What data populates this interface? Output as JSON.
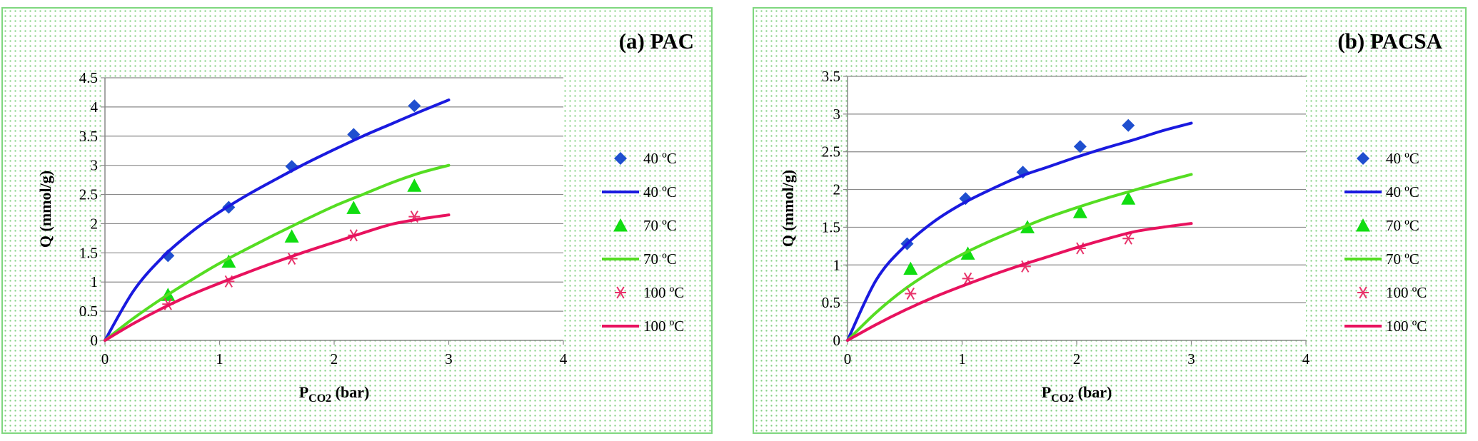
{
  "chart_data": [
    {
      "type": "scatter",
      "title": "(a) PAC",
      "xlabel": "P",
      "xlabel_sub": "CO2",
      "xlabel_unit": " (bar)",
      "ylabel": "Q (mmol/g)",
      "xlim": [
        0,
        4
      ],
      "ylim": [
        0,
        4.5
      ],
      "xticks": [
        "0",
        "1",
        "2",
        "3",
        "4"
      ],
      "yticks": [
        "0",
        "0.5",
        "1",
        "1.5",
        "2",
        "2.5",
        "3",
        "3.5",
        "4",
        "4.5"
      ],
      "grid": "horizontal",
      "legend_position": "right",
      "series": [
        {
          "name": "40 ºC",
          "kind": "markers",
          "marker": "diamond",
          "color": "#1f4fcf",
          "x": [
            0.55,
            1.08,
            1.63,
            2.17,
            2.7
          ],
          "y": [
            1.45,
            2.28,
            2.98,
            3.53,
            4.02
          ]
        },
        {
          "name": "40 ºC",
          "kind": "line",
          "color": "#1a1adf",
          "x": [
            0,
            0.25,
            0.5,
            0.75,
            1,
            1.25,
            1.5,
            1.75,
            2,
            2.25,
            2.5,
            2.75,
            3
          ],
          "y": [
            0,
            0.85,
            1.42,
            1.85,
            2.2,
            2.5,
            2.77,
            3.03,
            3.27,
            3.5,
            3.71,
            3.92,
            4.12
          ]
        },
        {
          "name": "70 ºC",
          "kind": "markers",
          "marker": "triangle",
          "color": "#11dd11",
          "x": [
            0.55,
            1.08,
            1.63,
            2.17,
            2.7
          ],
          "y": [
            0.78,
            1.35,
            1.78,
            2.27,
            2.65
          ]
        },
        {
          "name": "70 ºC",
          "kind": "line",
          "color": "#55dd22",
          "x": [
            0,
            0.25,
            0.5,
            0.75,
            1,
            1.25,
            1.5,
            1.75,
            2,
            2.25,
            2.5,
            2.75,
            3
          ],
          "y": [
            0,
            0.38,
            0.72,
            1.03,
            1.32,
            1.58,
            1.83,
            2.07,
            2.3,
            2.5,
            2.7,
            2.87,
            3.0
          ]
        },
        {
          "name": "100 ºC",
          "kind": "markers",
          "marker": "asterisk",
          "color": "#e8336b",
          "x": [
            0.55,
            1.08,
            1.63,
            2.17,
            2.7
          ],
          "y": [
            0.62,
            1.01,
            1.4,
            1.8,
            2.12
          ]
        },
        {
          "name": "100 ºC",
          "kind": "line",
          "color": "#e8125e",
          "x": [
            0,
            0.25,
            0.5,
            0.75,
            1,
            1.25,
            1.5,
            1.75,
            2,
            2.25,
            2.5,
            2.75,
            3
          ],
          "y": [
            0,
            0.29,
            0.55,
            0.78,
            0.98,
            1.17,
            1.35,
            1.52,
            1.68,
            1.84,
            1.99,
            2.08,
            2.15
          ]
        }
      ]
    },
    {
      "type": "scatter",
      "title": "(b) PACSA",
      "xlabel": "P",
      "xlabel_sub": "CO2",
      "xlabel_unit": " (bar)",
      "ylabel": "Q (mmol/g)",
      "xlim": [
        0,
        4
      ],
      "ylim": [
        0,
        3.5
      ],
      "xticks": [
        "0",
        "1",
        "2",
        "3",
        "4"
      ],
      "yticks": [
        "0",
        "0.5",
        "1",
        "1.5",
        "2",
        "2.5",
        "3",
        "3.5"
      ],
      "grid": "horizontal",
      "legend_position": "right",
      "series": [
        {
          "name": "40 ºC",
          "kind": "markers",
          "marker": "diamond",
          "color": "#1f4fcf",
          "x": [
            0.52,
            1.03,
            1.53,
            2.03,
            2.45
          ],
          "y": [
            1.28,
            1.88,
            2.23,
            2.57,
            2.85
          ]
        },
        {
          "name": "40 ºC",
          "kind": "line",
          "color": "#1a1adf",
          "x": [
            0,
            0.25,
            0.5,
            0.75,
            1,
            1.25,
            1.5,
            1.75,
            2,
            2.25,
            2.5,
            2.75,
            3
          ],
          "y": [
            0,
            0.8,
            1.25,
            1.57,
            1.81,
            2.0,
            2.17,
            2.3,
            2.43,
            2.55,
            2.66,
            2.78,
            2.88
          ]
        },
        {
          "name": "70 ºC",
          "kind": "markers",
          "marker": "triangle",
          "color": "#11dd11",
          "x": [
            0.55,
            1.05,
            1.57,
            2.03,
            2.45
          ],
          "y": [
            0.95,
            1.15,
            1.5,
            1.7,
            1.88
          ]
        },
        {
          "name": "70 ºC",
          "kind": "line",
          "color": "#55dd22",
          "x": [
            0,
            0.25,
            0.5,
            0.75,
            1,
            1.25,
            1.5,
            1.75,
            2,
            2.25,
            2.5,
            2.75,
            3
          ],
          "y": [
            0,
            0.37,
            0.68,
            0.93,
            1.14,
            1.32,
            1.48,
            1.63,
            1.76,
            1.88,
            1.99,
            2.1,
            2.2
          ]
        },
        {
          "name": "100 ºC",
          "kind": "markers",
          "marker": "asterisk",
          "color": "#e8336b",
          "x": [
            0.55,
            1.05,
            1.55,
            2.03,
            2.45
          ],
          "y": [
            0.62,
            0.82,
            0.98,
            1.22,
            1.35
          ]
        },
        {
          "name": "100 ºC",
          "kind": "line",
          "color": "#e8125e",
          "x": [
            0,
            0.25,
            0.5,
            0.75,
            1,
            1.25,
            1.5,
            1.75,
            2,
            2.25,
            2.5,
            2.75,
            3
          ],
          "y": [
            0,
            0.21,
            0.4,
            0.57,
            0.72,
            0.86,
            0.99,
            1.11,
            1.23,
            1.34,
            1.44,
            1.5,
            1.55
          ]
        }
      ]
    }
  ]
}
